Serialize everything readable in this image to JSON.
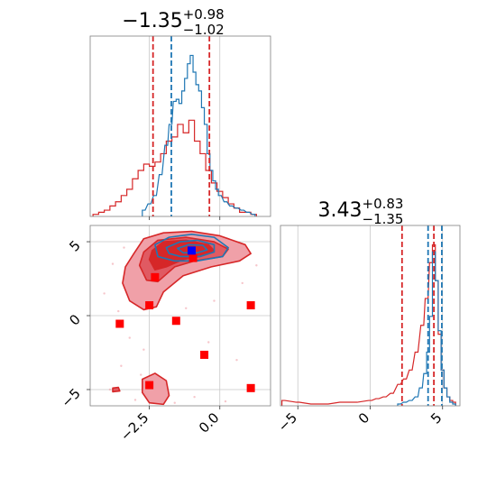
{
  "chart_data": {
    "type": "corner",
    "colors": {
      "series_a": "#1f77b4",
      "series_b": "#d62728",
      "marker_points": "#ff0000",
      "truth_point": "#0000ff",
      "grid": "#c8c8c8",
      "frame": "#808080"
    },
    "panels": [
      {
        "id": "hist-param1",
        "type": "histogram",
        "title": {
          "value": "−1.35",
          "upper": "+0.98",
          "lower": "−1.02"
        },
        "xlim": [
          -4.6,
          1.8
        ],
        "xticks": [
          -2.5,
          0.0
        ],
        "show_tick_labels": false,
        "dashed_lines": [
          {
            "series": "series_b",
            "x": -2.37
          },
          {
            "series": "series_a",
            "x": -1.72
          },
          {
            "series": "series_b",
            "x": -0.37
          }
        ],
        "series_a": {
          "centers": [
            -2.7,
            -2.5,
            -2.3,
            -2.1,
            -1.9,
            -1.75,
            -1.6,
            -1.5,
            -1.4,
            -1.3,
            -1.2,
            -1.1,
            -1.0,
            -0.9,
            -0.8,
            -0.7,
            -0.6,
            -0.5,
            -0.4,
            -0.3,
            -0.2,
            -0.1,
            0.0,
            0.2,
            0.4,
            0.6,
            0.8,
            1.0,
            1.2
          ],
          "values": [
            0.03,
            0.06,
            0.1,
            0.2,
            0.34,
            0.44,
            0.55,
            0.56,
            0.54,
            0.6,
            0.66,
            0.73,
            0.77,
            0.69,
            0.63,
            0.6,
            0.52,
            0.44,
            0.3,
            0.22,
            0.17,
            0.13,
            0.1,
            0.07,
            0.05,
            0.04,
            0.03,
            0.02,
            0.01
          ]
        },
        "series_b": {
          "centers": [
            -4.4,
            -4.2,
            -4.0,
            -3.8,
            -3.6,
            -3.4,
            -3.2,
            -3.0,
            -2.8,
            -2.6,
            -2.4,
            -2.2,
            -2.0,
            -1.8,
            -1.6,
            -1.4,
            -1.2,
            -1.0,
            -0.8,
            -0.6,
            -0.4,
            -0.2,
            0.0,
            0.2,
            0.4,
            0.6,
            0.8,
            1.0,
            1.2
          ],
          "values": [
            0.01,
            0.02,
            0.03,
            0.05,
            0.07,
            0.1,
            0.13,
            0.18,
            0.22,
            0.25,
            0.24,
            0.26,
            0.3,
            0.36,
            0.38,
            0.44,
            0.4,
            0.46,
            0.36,
            0.3,
            0.22,
            0.16,
            0.12,
            0.09,
            0.06,
            0.04,
            0.02,
            0.02,
            0.01
          ]
        }
      },
      {
        "id": "hist-param2",
        "type": "histogram",
        "title": {
          "value": "3.43",
          "upper": "+0.83",
          "lower": "−1.35"
        },
        "xlim": [
          -6.2,
          6.2
        ],
        "xticks": [
          -5,
          0,
          5
        ],
        "xtick_labels": [
          "−5",
          "0",
          "5"
        ],
        "dashed_lines": [
          {
            "series": "series_b",
            "x": 2.2
          },
          {
            "series": "series_a",
            "x": 4.0
          },
          {
            "series": "series_b",
            "x": 4.4
          },
          {
            "series": "series_a",
            "x": 4.95
          }
        ],
        "series_a": {
          "centers": [
            2.0,
            2.4,
            2.8,
            3.2,
            3.5,
            3.8,
            4.0,
            4.2,
            4.4,
            4.6,
            4.8,
            5.0,
            5.2,
            5.4,
            5.6,
            5.8
          ],
          "values": [
            0.01,
            0.02,
            0.03,
            0.05,
            0.1,
            0.18,
            0.3,
            0.5,
            0.86,
            0.7,
            0.42,
            0.2,
            0.1,
            0.05,
            0.02,
            0.01
          ]
        },
        "series_b": {
          "centers": [
            -6.0,
            -5.0,
            -4.0,
            -3.0,
            -2.0,
            -1.0,
            0.0,
            0.5,
            1.0,
            1.5,
            2.0,
            2.4,
            2.8,
            3.2,
            3.6,
            3.9,
            4.2,
            4.4,
            4.6,
            4.8,
            5.0,
            5.2,
            5.4,
            5.6,
            5.8
          ],
          "values": [
            0.03,
            0.02,
            0.01,
            0.01,
            0.02,
            0.02,
            0.03,
            0.04,
            0.05,
            0.07,
            0.12,
            0.15,
            0.2,
            0.3,
            0.45,
            0.6,
            0.8,
            0.9,
            0.7,
            0.4,
            0.2,
            0.1,
            0.05,
            0.03,
            0.02
          ]
        }
      },
      {
        "id": "scatter-param1-param2",
        "type": "contour",
        "xlim": [
          -4.6,
          1.8
        ],
        "ylim": [
          -6.1,
          6.1
        ],
        "xticks": [
          -2.5,
          0.0
        ],
        "xtick_labels": [
          "−2.5",
          "0.0"
        ],
        "yticks": [
          -5,
          0,
          5
        ],
        "ytick_labels": [
          "−5",
          "0",
          "5"
        ],
        "series_b_levels": [
          {
            "fill": "#f0a0a8",
            "points": [
              [
                -3.05,
                4.2
              ],
              [
                -2.7,
                5.2
              ],
              [
                -2.0,
                5.6
              ],
              [
                -1.0,
                5.7
              ],
              [
                0.0,
                5.4
              ],
              [
                0.9,
                4.8
              ],
              [
                1.1,
                4.2
              ],
              [
                0.7,
                3.7
              ],
              [
                -0.3,
                3.3
              ],
              [
                -1.3,
                2.7
              ],
              [
                -2.0,
                1.6
              ],
              [
                -2.25,
                0.6
              ],
              [
                -2.7,
                0.4
              ],
              [
                -3.2,
                1.0
              ],
              [
                -3.45,
                2.2
              ],
              [
                -3.35,
                3.3
              ]
            ]
          },
          {
            "fill": "#e05a62",
            "points": [
              [
                -2.7,
                4.3
              ],
              [
                -2.2,
                5.1
              ],
              [
                -1.2,
                5.3
              ],
              [
                -0.2,
                5.0
              ],
              [
                0.3,
                4.5
              ],
              [
                0.1,
                4.0
              ],
              [
                -0.9,
                3.7
              ],
              [
                -1.6,
                3.3
              ],
              [
                -2.2,
                2.3
              ],
              [
                -2.6,
                2.4
              ],
              [
                -2.85,
                3.4
              ]
            ]
          },
          {
            "fill": "#d62728",
            "points": [
              [
                -2.4,
                4.4
              ],
              [
                -2.0,
                5.0
              ],
              [
                -1.2,
                5.1
              ],
              [
                -0.4,
                4.8
              ],
              [
                -0.2,
                4.4
              ],
              [
                -0.7,
                4.0
              ],
              [
                -1.3,
                3.8
              ],
              [
                -1.9,
                3.3
              ],
              [
                -2.3,
                3.1
              ],
              [
                -2.5,
                3.8
              ]
            ]
          }
        ],
        "series_b_islands": [
          {
            "fill": "#f0a0a8",
            "points": [
              [
                -2.75,
                -4.3
              ],
              [
                -2.3,
                -3.9
              ],
              [
                -1.9,
                -4.4
              ],
              [
                -1.8,
                -5.4
              ],
              [
                -2.0,
                -6.0
              ],
              [
                -2.5,
                -5.9
              ],
              [
                -2.75,
                -5.2
              ]
            ]
          },
          {
            "fill": "#e05a62",
            "points": [
              [
                -3.8,
                -4.9
              ],
              [
                -3.6,
                -4.85
              ],
              [
                -3.55,
                -5.1
              ],
              [
                -3.8,
                -5.15
              ]
            ]
          }
        ],
        "series_a_levels": [
          {
            "points": [
              [
                -2.3,
                4.8
              ],
              [
                -1.8,
                5.3
              ],
              [
                -1.0,
                5.5
              ],
              [
                -0.2,
                5.3
              ],
              [
                0.3,
                4.6
              ],
              [
                0.1,
                4.0
              ],
              [
                -0.8,
                3.7
              ],
              [
                -1.6,
                3.7
              ],
              [
                -2.2,
                4.0
              ]
            ]
          },
          {
            "points": [
              [
                -1.9,
                4.6
              ],
              [
                -1.4,
                5.0
              ],
              [
                -0.8,
                5.1
              ],
              [
                -0.2,
                4.8
              ],
              [
                -0.2,
                4.3
              ],
              [
                -0.7,
                4.0
              ],
              [
                -1.4,
                4.0
              ],
              [
                -1.8,
                4.2
              ]
            ]
          },
          {
            "points": [
              [
                -1.5,
                4.55
              ],
              [
                -1.1,
                4.8
              ],
              [
                -0.6,
                4.75
              ],
              [
                -0.45,
                4.45
              ],
              [
                -0.8,
                4.25
              ],
              [
                -1.3,
                4.25
              ]
            ]
          }
        ],
        "marker_points": [
          [
            -1.0,
            4.4
          ],
          [
            -0.95,
            3.9
          ],
          [
            -2.3,
            2.6
          ],
          [
            -2.5,
            0.7
          ],
          [
            -1.55,
            -0.35
          ],
          [
            -3.55,
            -0.55
          ],
          [
            1.1,
            0.7
          ],
          [
            -0.55,
            -2.65
          ],
          [
            -2.5,
            -4.7
          ],
          [
            1.1,
            -4.9
          ]
        ],
        "truth_point": [
          -1.0,
          4.4
        ],
        "sample_points": [
          [
            -3.8,
            3.5
          ],
          [
            -3.2,
            -1.5
          ],
          [
            -2.7,
            -2.3
          ],
          [
            -0.4,
            -1.8
          ],
          [
            0.6,
            -3.0
          ],
          [
            -3.5,
            -3.4
          ],
          [
            -2.2,
            -5.6
          ],
          [
            -1.6,
            -5.9
          ],
          [
            -0.9,
            -5.5
          ],
          [
            -3.9,
            -5.0
          ],
          [
            -4.1,
            1.5
          ],
          [
            -3.6,
            0.3
          ],
          [
            0.8,
            2.2
          ],
          [
            1.3,
            3.4
          ],
          [
            -0.2,
            1.0
          ],
          [
            -1.2,
            0.5
          ],
          [
            -2.8,
            -4.0
          ],
          [
            -3.0,
            -5.7
          ],
          [
            0.2,
            -5.8
          ],
          [
            -3.4,
            4.6
          ]
        ]
      }
    ]
  }
}
